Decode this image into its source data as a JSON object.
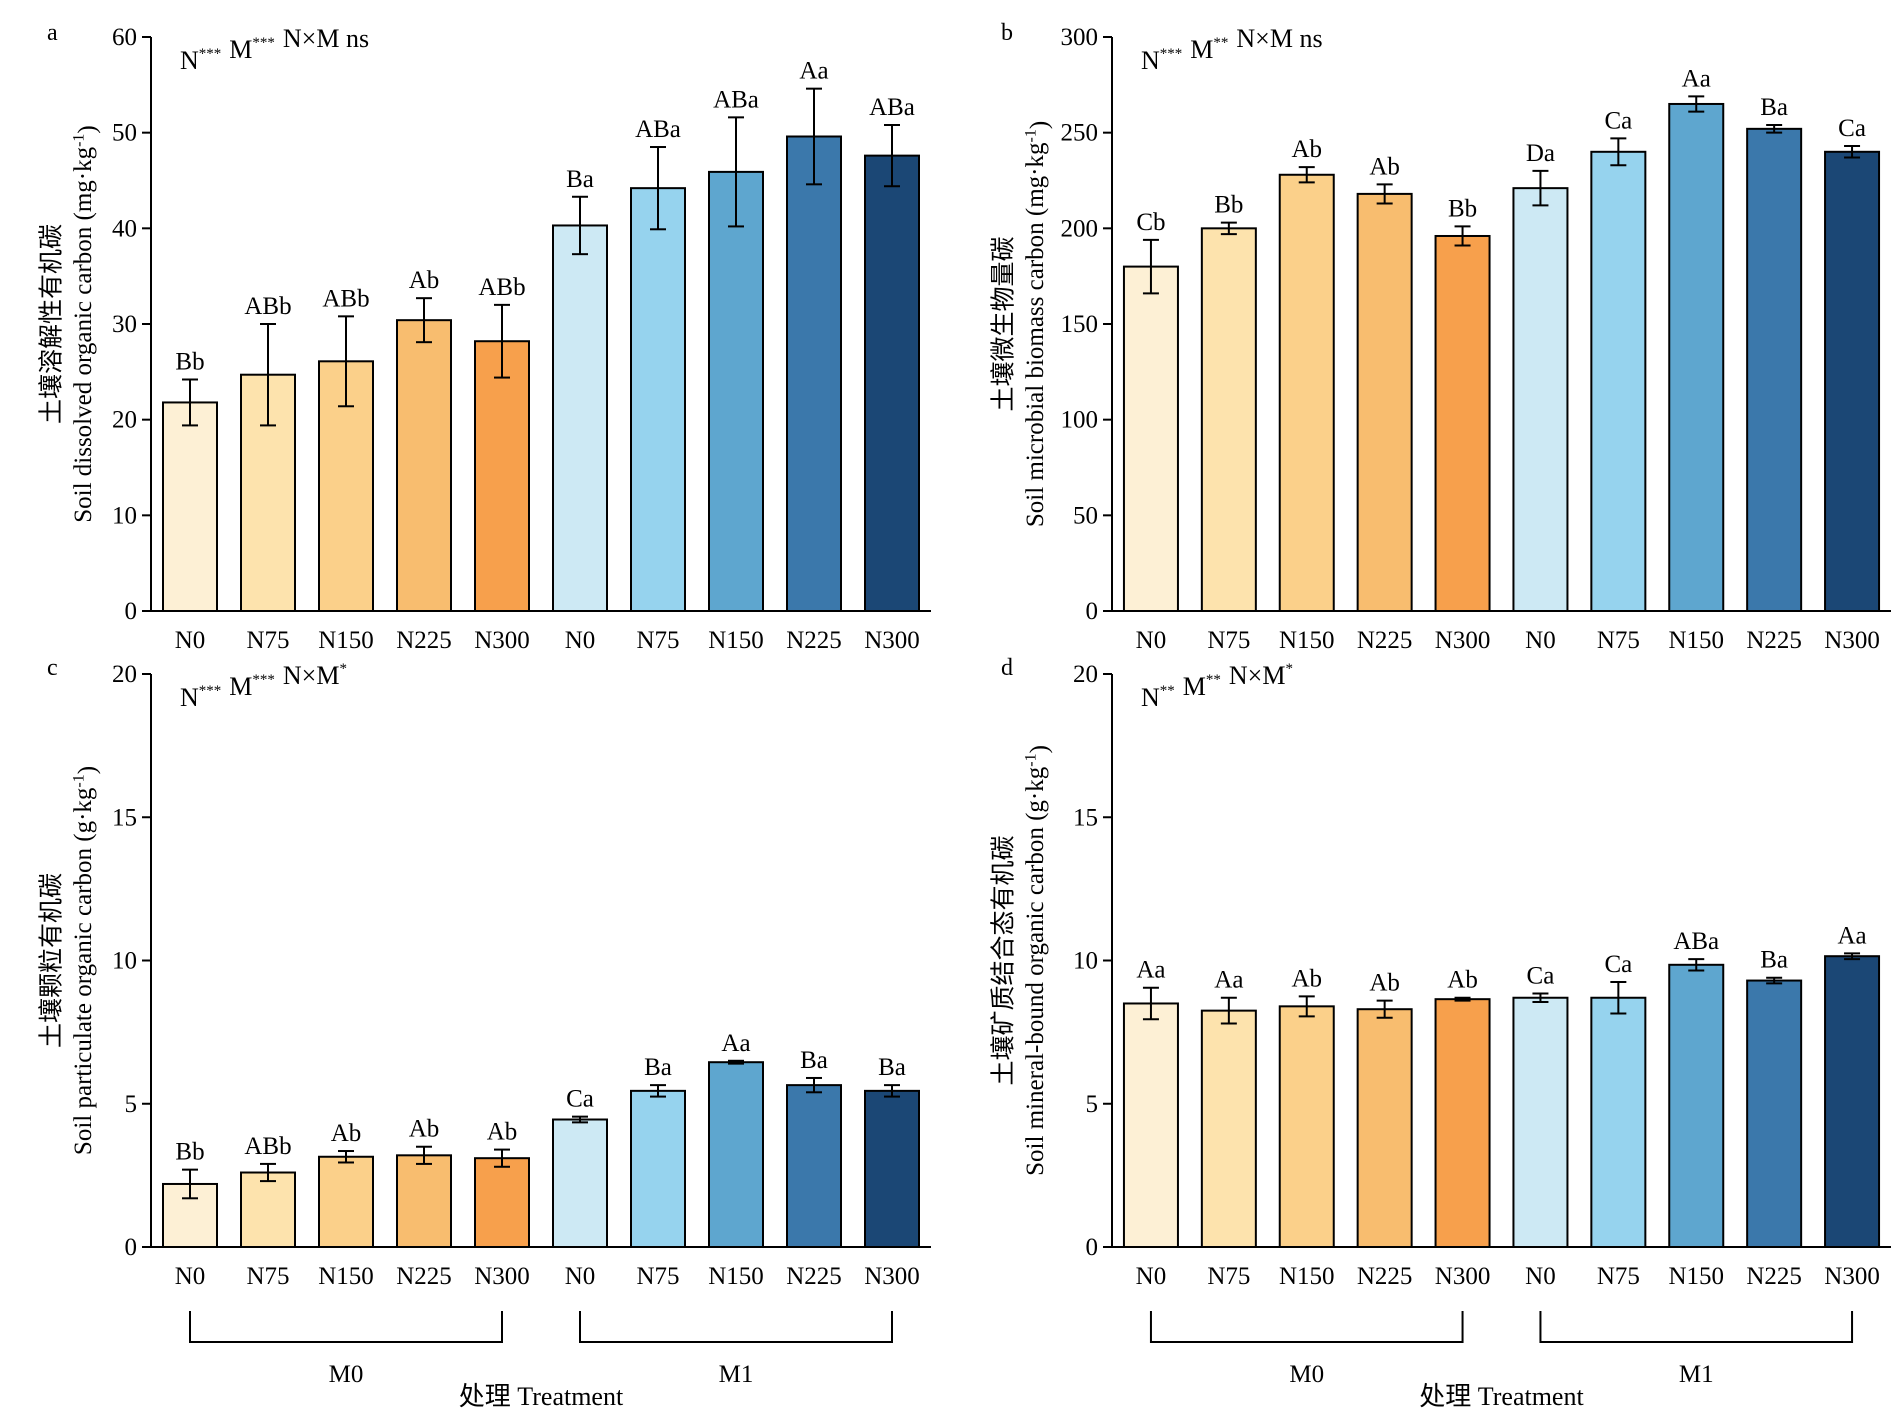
{
  "colors": [
    "#fdf0d5",
    "#fde3ad",
    "#fbd08a",
    "#f8bd6f",
    "#f7a04c",
    "#cde9f4",
    "#96d3ee",
    "#5ea6cf",
    "#3b78ab",
    "#1b4775"
  ],
  "x_axis": {
    "groups": [
      "M0",
      "M1"
    ],
    "title": "处理 Treatment"
  },
  "chart_data": [
    {
      "type": "bar",
      "panel": "a",
      "ylabel_cn": "土壤溶解性有机碳",
      "ylabel_en": "Soil dissolved organic carbon (mg·kg",
      "ylabel_unit_sup": "-1",
      "ylabel_unit_close": ")",
      "stats": [
        {
          "label": "N",
          "sig": "***"
        },
        {
          "label": "M",
          "sig": "***"
        },
        {
          "label": "N×M ns",
          "sig": ""
        }
      ],
      "ylim": [
        0,
        60
      ],
      "yticks": [
        0,
        10,
        20,
        30,
        40,
        50,
        60
      ],
      "categories": [
        "N0",
        "N75",
        "N150",
        "N225",
        "N300",
        "N0",
        "N75",
        "N150",
        "N225",
        "N300"
      ],
      "values": [
        21.8,
        24.7,
        26.1,
        30.4,
        28.2,
        40.3,
        44.2,
        45.9,
        49.6,
        47.6
      ],
      "errors": [
        2.4,
        5.3,
        4.7,
        2.3,
        3.8,
        3.0,
        4.3,
        5.7,
        5.0,
        3.2
      ],
      "sig_letters": [
        "Bb",
        "ABb",
        "ABb",
        "Ab",
        "ABb",
        "Ba",
        "ABa",
        "ABa",
        "Aa",
        "ABa"
      ]
    },
    {
      "type": "bar",
      "panel": "b",
      "ylabel_cn": "土壤微生物量碳",
      "ylabel_en": "Soil microbial biomass carbon (mg·kg",
      "ylabel_unit_sup": "-1",
      "ylabel_unit_close": ")",
      "stats": [
        {
          "label": "N",
          "sig": "***"
        },
        {
          "label": "M",
          "sig": "**"
        },
        {
          "label": "N×M ns",
          "sig": ""
        }
      ],
      "ylim": [
        0,
        300
      ],
      "yticks": [
        0,
        50,
        100,
        150,
        200,
        250,
        300
      ],
      "categories": [
        "N0",
        "N75",
        "N150",
        "N225",
        "N300",
        "N0",
        "N75",
        "N150",
        "N225",
        "N300"
      ],
      "values": [
        180,
        200,
        228,
        218,
        196,
        221,
        240,
        265,
        252,
        240
      ],
      "errors": [
        14,
        3,
        4,
        5,
        5,
        9,
        7,
        4,
        2,
        3
      ],
      "sig_letters": [
        "Cb",
        "Bb",
        "Ab",
        "Ab",
        "Bb",
        "Da",
        "Ca",
        "Aa",
        "Ba",
        "Ca"
      ]
    },
    {
      "type": "bar",
      "panel": "c",
      "ylabel_cn": "土壤颗粒有机碳",
      "ylabel_en": "Soil particulate organic carbon (g·kg",
      "ylabel_unit_sup": "-1",
      "ylabel_unit_close": ")",
      "stats": [
        {
          "label": "N",
          "sig": "***"
        },
        {
          "label": "M",
          "sig": "***"
        },
        {
          "label": "N×M",
          "sig": "*"
        }
      ],
      "ylim": [
        0,
        20
      ],
      "yticks": [
        0,
        5,
        10,
        15,
        20
      ],
      "categories": [
        "N0",
        "N75",
        "N150",
        "N225",
        "N300",
        "N0",
        "N75",
        "N150",
        "N225",
        "N300"
      ],
      "values": [
        2.2,
        2.6,
        3.15,
        3.2,
        3.1,
        4.45,
        5.45,
        6.45,
        5.65,
        5.45
      ],
      "errors": [
        0.5,
        0.3,
        0.2,
        0.3,
        0.3,
        0.1,
        0.2,
        0.05,
        0.25,
        0.2
      ],
      "sig_letters": [
        "Bb",
        "ABb",
        "Ab",
        "Ab",
        "Ab",
        "Ca",
        "Ba",
        "Aa",
        "Ba",
        "Ba"
      ]
    },
    {
      "type": "bar",
      "panel": "d",
      "ylabel_cn": "土壤矿质结合态有机碳",
      "ylabel_en": "Soil mineral-bound organic carbon (g·kg",
      "ylabel_unit_sup": "-1",
      "ylabel_unit_close": ")",
      "stats": [
        {
          "label": "N",
          "sig": "**"
        },
        {
          "label": "M",
          "sig": "**"
        },
        {
          "label": "N×M",
          "sig": "*"
        }
      ],
      "ylim": [
        0,
        20
      ],
      "yticks": [
        0,
        5,
        10,
        15,
        20
      ],
      "categories": [
        "N0",
        "N75",
        "N150",
        "N225",
        "N300",
        "N0",
        "N75",
        "N150",
        "N225",
        "N300"
      ],
      "values": [
        8.5,
        8.25,
        8.4,
        8.3,
        8.65,
        8.7,
        8.7,
        9.85,
        9.3,
        10.15
      ],
      "errors": [
        0.55,
        0.45,
        0.35,
        0.3,
        0.05,
        0.15,
        0.55,
        0.2,
        0.1,
        0.1
      ],
      "sig_letters": [
        "Aa",
        "Aa",
        "Ab",
        "Ab",
        "Ab",
        "Ca",
        "Ca",
        "ABa",
        "Ba",
        "Aa"
      ]
    }
  ]
}
